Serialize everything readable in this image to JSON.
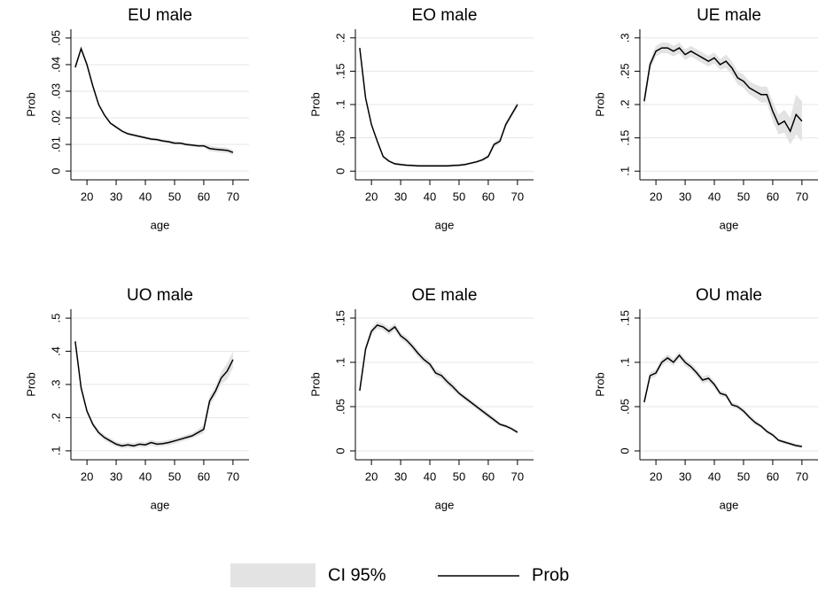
{
  "chart_data": [
    {
      "type": "line",
      "title": "EU male",
      "xlabel": "age",
      "ylabel": "Prob",
      "x": [
        16,
        18,
        20,
        22,
        24,
        26,
        28,
        30,
        32,
        34,
        36,
        38,
        40,
        42,
        44,
        46,
        48,
        50,
        52,
        54,
        56,
        58,
        60,
        62,
        64,
        66,
        68,
        70
      ],
      "values": [
        0.039,
        0.046,
        0.04,
        0.032,
        0.025,
        0.021,
        0.018,
        0.0165,
        0.015,
        0.014,
        0.0135,
        0.013,
        0.0125,
        0.012,
        0.0118,
        0.0113,
        0.011,
        0.0105,
        0.0105,
        0.01,
        0.0098,
        0.0095,
        0.0095,
        0.0085,
        0.0082,
        0.008,
        0.0078,
        0.007
      ],
      "ci_lower": [
        0.038,
        0.045,
        0.039,
        0.0315,
        0.0245,
        0.0205,
        0.0175,
        0.016,
        0.0145,
        0.0135,
        0.013,
        0.0125,
        0.012,
        0.0114,
        0.0112,
        0.0107,
        0.0104,
        0.0099,
        0.0099,
        0.0094,
        0.0092,
        0.0089,
        0.0089,
        0.0075,
        0.0072,
        0.007,
        0.0068,
        0.006
      ],
      "ci_upper": [
        0.04,
        0.047,
        0.041,
        0.0325,
        0.0255,
        0.0215,
        0.0185,
        0.017,
        0.0155,
        0.0145,
        0.014,
        0.0135,
        0.013,
        0.0126,
        0.0124,
        0.0119,
        0.0116,
        0.0111,
        0.0111,
        0.0106,
        0.0104,
        0.0101,
        0.0101,
        0.0095,
        0.0092,
        0.009,
        0.0088,
        0.008
      ],
      "xlim": [
        14.5,
        75.5
      ],
      "xticks": [
        20,
        30,
        40,
        50,
        60,
        70
      ],
      "ylim": [
        -0.0033,
        0.0533
      ],
      "yticks": [
        0,
        {
          "value": 0.01,
          "label": ".01"
        },
        {
          "value": 0.02,
          "label": ".02"
        },
        {
          "value": 0.03,
          "label": ".03"
        },
        {
          "value": 0.04,
          "label": ".04"
        },
        {
          "value": 0.05,
          "label": ".05"
        }
      ],
      "grid": true
    },
    {
      "type": "line",
      "title": "EO male",
      "xlabel": "age",
      "ylabel": "Prob",
      "x": [
        16,
        18,
        20,
        22,
        24,
        26,
        28,
        30,
        32,
        34,
        36,
        38,
        40,
        42,
        44,
        46,
        48,
        50,
        52,
        54,
        56,
        58,
        60,
        62,
        64,
        66,
        68,
        70
      ],
      "values": [
        0.185,
        0.11,
        0.07,
        0.045,
        0.022,
        0.015,
        0.011,
        0.01,
        0.009,
        0.0085,
        0.008,
        0.008,
        0.008,
        0.008,
        0.008,
        0.008,
        0.0085,
        0.009,
        0.01,
        0.012,
        0.014,
        0.017,
        0.022,
        0.04,
        0.045,
        0.07,
        0.085,
        0.1
      ],
      "ci_lower": [
        0.182,
        0.107,
        0.068,
        0.043,
        0.02,
        0.013,
        0.009,
        0.008,
        0.007,
        0.0065,
        0.006,
        0.006,
        0.006,
        0.006,
        0.006,
        0.006,
        0.0065,
        0.007,
        0.008,
        0.01,
        0.012,
        0.015,
        0.019,
        0.036,
        0.041,
        0.066,
        0.081,
        0.096
      ],
      "ci_upper": [
        0.188,
        0.113,
        0.072,
        0.047,
        0.024,
        0.017,
        0.013,
        0.012,
        0.011,
        0.0105,
        0.01,
        0.01,
        0.01,
        0.01,
        0.01,
        0.01,
        0.0105,
        0.011,
        0.012,
        0.014,
        0.016,
        0.019,
        0.025,
        0.044,
        0.049,
        0.074,
        0.089,
        0.104
      ],
      "xlim": [
        14.5,
        75.5
      ],
      "xticks": [
        20,
        30,
        40,
        50,
        60,
        70
      ],
      "ylim": [
        -0.013,
        0.213
      ],
      "yticks": [
        0,
        {
          "value": 0.05,
          "label": ".05"
        },
        {
          "value": 0.1,
          "label": ".1"
        },
        {
          "value": 0.15,
          "label": ".15"
        },
        {
          "value": 0.2,
          "label": ".2"
        }
      ],
      "grid": true
    },
    {
      "type": "line",
      "title": "UE male",
      "xlabel": "age",
      "ylabel": "Prob",
      "x": [
        16,
        18,
        20,
        22,
        24,
        26,
        28,
        30,
        32,
        34,
        36,
        38,
        40,
        42,
        44,
        46,
        48,
        50,
        52,
        54,
        56,
        58,
        60,
        62,
        64,
        66,
        68,
        70
      ],
      "values": [
        0.205,
        0.26,
        0.28,
        0.285,
        0.285,
        0.28,
        0.285,
        0.275,
        0.28,
        0.275,
        0.27,
        0.265,
        0.27,
        0.26,
        0.265,
        0.255,
        0.24,
        0.235,
        0.225,
        0.22,
        0.215,
        0.215,
        0.19,
        0.17,
        0.175,
        0.16,
        0.185,
        0.175
      ],
      "ci_lower": [
        0.195,
        0.252,
        0.272,
        0.277,
        0.277,
        0.272,
        0.277,
        0.267,
        0.272,
        0.267,
        0.262,
        0.257,
        0.262,
        0.252,
        0.255,
        0.245,
        0.23,
        0.225,
        0.215,
        0.21,
        0.203,
        0.203,
        0.175,
        0.155,
        0.158,
        0.14,
        0.155,
        0.145
      ],
      "ci_upper": [
        0.215,
        0.268,
        0.288,
        0.293,
        0.293,
        0.288,
        0.293,
        0.283,
        0.288,
        0.283,
        0.278,
        0.273,
        0.278,
        0.268,
        0.275,
        0.265,
        0.25,
        0.245,
        0.235,
        0.23,
        0.227,
        0.227,
        0.205,
        0.185,
        0.192,
        0.18,
        0.215,
        0.205
      ],
      "xlim": [
        14.5,
        75.5
      ],
      "xticks": [
        20,
        30,
        40,
        50,
        60,
        70
      ],
      "ylim": [
        0.087,
        0.313
      ],
      "yticks": [
        {
          "value": 0.1,
          "label": ".1"
        },
        {
          "value": 0.15,
          "label": ".15"
        },
        {
          "value": 0.2,
          "label": ".2"
        },
        {
          "value": 0.25,
          "label": ".25"
        },
        {
          "value": 0.3,
          "label": ".3"
        }
      ],
      "grid": true
    },
    {
      "type": "line",
      "title": "UO male",
      "xlabel": "age",
      "ylabel": "Prob",
      "x": [
        16,
        18,
        20,
        22,
        24,
        26,
        28,
        30,
        32,
        34,
        36,
        38,
        40,
        42,
        44,
        46,
        48,
        50,
        52,
        54,
        56,
        58,
        60,
        62,
        64,
        66,
        68,
        70
      ],
      "values": [
        0.43,
        0.29,
        0.22,
        0.18,
        0.155,
        0.14,
        0.13,
        0.12,
        0.115,
        0.118,
        0.115,
        0.12,
        0.118,
        0.125,
        0.12,
        0.122,
        0.125,
        0.13,
        0.135,
        0.14,
        0.145,
        0.155,
        0.165,
        0.25,
        0.28,
        0.32,
        0.34,
        0.375
      ],
      "ci_lower": [
        0.42,
        0.282,
        0.212,
        0.172,
        0.147,
        0.132,
        0.122,
        0.112,
        0.107,
        0.11,
        0.107,
        0.112,
        0.11,
        0.117,
        0.112,
        0.114,
        0.117,
        0.122,
        0.127,
        0.132,
        0.137,
        0.145,
        0.153,
        0.235,
        0.265,
        0.302,
        0.315,
        0.35
      ],
      "ci_upper": [
        0.44,
        0.298,
        0.228,
        0.188,
        0.163,
        0.148,
        0.138,
        0.128,
        0.123,
        0.126,
        0.123,
        0.128,
        0.126,
        0.133,
        0.128,
        0.13,
        0.133,
        0.138,
        0.143,
        0.148,
        0.153,
        0.165,
        0.177,
        0.265,
        0.295,
        0.338,
        0.365,
        0.4
      ],
      "xlim": [
        14.5,
        75.5
      ],
      "xticks": [
        20,
        30,
        40,
        50,
        60,
        70
      ],
      "ylim": [
        0.073,
        0.527
      ],
      "yticks": [
        {
          "value": 0.1,
          "label": ".1"
        },
        {
          "value": 0.2,
          "label": ".2"
        },
        {
          "value": 0.3,
          "label": ".3"
        },
        {
          "value": 0.4,
          "label": ".4"
        },
        {
          "value": 0.5,
          "label": ".5"
        }
      ],
      "grid": true
    },
    {
      "type": "line",
      "title": "OE male",
      "xlabel": "age",
      "ylabel": "Prob",
      "x": [
        16,
        18,
        20,
        22,
        24,
        26,
        28,
        30,
        32,
        34,
        36,
        38,
        40,
        42,
        44,
        46,
        48,
        50,
        52,
        54,
        56,
        58,
        60,
        62,
        64,
        66,
        68,
        70
      ],
      "values": [
        0.068,
        0.115,
        0.135,
        0.142,
        0.14,
        0.135,
        0.14,
        0.13,
        0.125,
        0.118,
        0.11,
        0.103,
        0.098,
        0.088,
        0.085,
        0.078,
        0.072,
        0.065,
        0.06,
        0.055,
        0.05,
        0.045,
        0.04,
        0.035,
        0.03,
        0.028,
        0.025,
        0.021
      ],
      "ci_lower": [
        0.064,
        0.111,
        0.131,
        0.138,
        0.136,
        0.131,
        0.136,
        0.126,
        0.121,
        0.114,
        0.106,
        0.099,
        0.094,
        0.084,
        0.081,
        0.074,
        0.068,
        0.062,
        0.057,
        0.052,
        0.047,
        0.042,
        0.037,
        0.032,
        0.028,
        0.026,
        0.023,
        0.019
      ],
      "ci_upper": [
        0.072,
        0.119,
        0.139,
        0.146,
        0.144,
        0.139,
        0.144,
        0.134,
        0.129,
        0.122,
        0.114,
        0.107,
        0.102,
        0.092,
        0.089,
        0.082,
        0.076,
        0.068,
        0.063,
        0.058,
        0.053,
        0.048,
        0.043,
        0.038,
        0.032,
        0.03,
        0.027,
        0.023
      ],
      "xlim": [
        14.5,
        75.5
      ],
      "xticks": [
        20,
        30,
        40,
        50,
        60,
        70
      ],
      "ylim": [
        -0.01,
        0.16
      ],
      "yticks": [
        0,
        {
          "value": 0.05,
          "label": ".05"
        },
        {
          "value": 0.1,
          "label": ".1"
        },
        {
          "value": 0.15,
          "label": ".15"
        }
      ],
      "grid": true
    },
    {
      "type": "line",
      "title": "OU male",
      "xlabel": "age",
      "ylabel": "Prob",
      "x": [
        16,
        18,
        20,
        22,
        24,
        26,
        28,
        30,
        32,
        34,
        36,
        38,
        40,
        42,
        44,
        46,
        48,
        50,
        52,
        54,
        56,
        58,
        60,
        62,
        64,
        66,
        68,
        70
      ],
      "values": [
        0.055,
        0.085,
        0.088,
        0.1,
        0.105,
        0.1,
        0.108,
        0.1,
        0.095,
        0.088,
        0.08,
        0.082,
        0.075,
        0.065,
        0.063,
        0.052,
        0.05,
        0.045,
        0.038,
        0.032,
        0.028,
        0.022,
        0.018,
        0.012,
        0.01,
        0.008,
        0.006,
        0.005
      ],
      "ci_lower": [
        0.051,
        0.081,
        0.084,
        0.096,
        0.101,
        0.096,
        0.104,
        0.096,
        0.091,
        0.084,
        0.076,
        0.078,
        0.071,
        0.062,
        0.06,
        0.049,
        0.047,
        0.042,
        0.035,
        0.029,
        0.026,
        0.02,
        0.016,
        0.01,
        0.008,
        0.006,
        0.004,
        0.003
      ],
      "ci_upper": [
        0.059,
        0.089,
        0.092,
        0.104,
        0.109,
        0.104,
        0.112,
        0.104,
        0.099,
        0.092,
        0.084,
        0.086,
        0.079,
        0.068,
        0.066,
        0.055,
        0.053,
        0.048,
        0.041,
        0.035,
        0.03,
        0.024,
        0.02,
        0.014,
        0.012,
        0.01,
        0.008,
        0.007
      ],
      "xlim": [
        14.5,
        75.5
      ],
      "xticks": [
        20,
        30,
        40,
        50,
        60,
        70
      ],
      "ylim": [
        -0.01,
        0.16
      ],
      "yticks": [
        0,
        {
          "value": 0.05,
          "label": ".05"
        },
        {
          "value": 0.1,
          "label": ".1"
        },
        {
          "value": 0.15,
          "label": ".15"
        }
      ],
      "grid": true
    }
  ],
  "legend": [
    {
      "name": "CI 95%",
      "color": "#e3e3e3"
    },
    {
      "name": "Prob",
      "color": "#000000"
    }
  ]
}
